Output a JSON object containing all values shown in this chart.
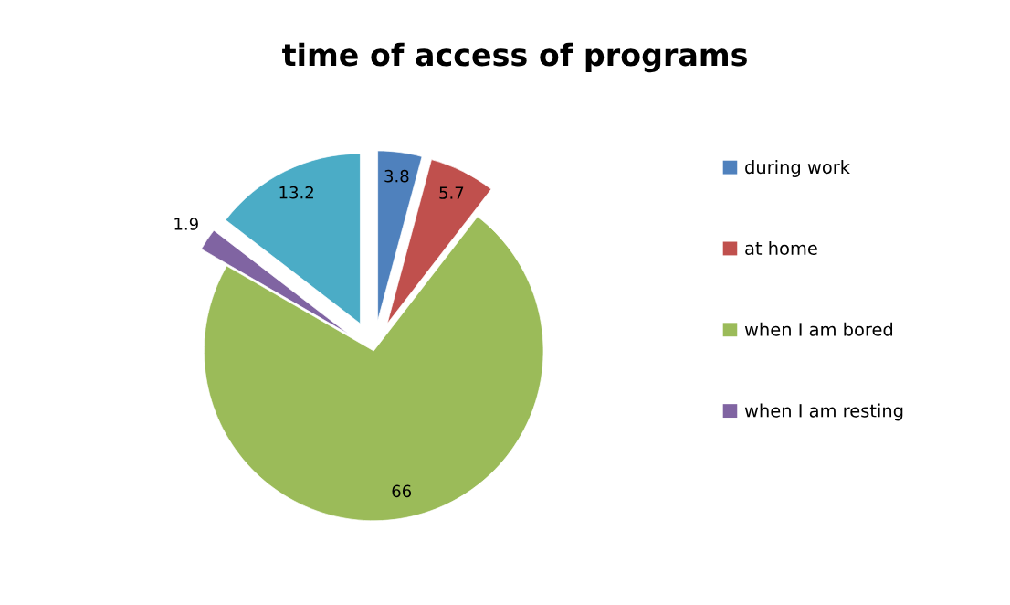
{
  "chart_data": {
    "type": "pie",
    "title": "time of access of programs",
    "categories": [
      "during work",
      "at home",
      "when I am bored",
      "when I am resting",
      null
    ],
    "values": [
      3.8,
      5.7,
      66,
      1.9,
      13.2
    ],
    "colors": [
      "#4f81bd",
      "#c0504d",
      "#9bbb59",
      "#8064a2",
      "#4bacc6"
    ],
    "data_labels": true,
    "legend": "right"
  }
}
